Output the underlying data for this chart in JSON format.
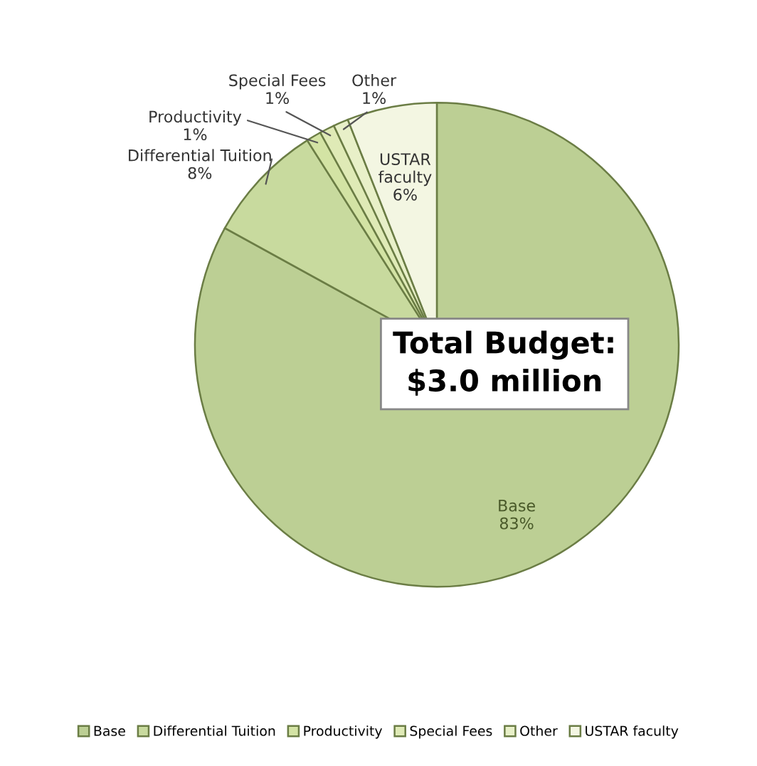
{
  "chart_data": {
    "type": "pie",
    "categories": [
      "Base",
      "Differential Tuition",
      "Productivity",
      "Special Fees",
      "Other",
      "USTAR faculty"
    ],
    "values": [
      83,
      8,
      1,
      1,
      1,
      6
    ],
    "colors": [
      "#bccf94",
      "#c8da9e",
      "#d3e3a4",
      "#dfeab6",
      "#e8f0c8",
      "#f3f6e2"
    ],
    "value_labels": [
      "83%",
      "8%",
      "1%",
      "1%",
      "1%",
      "6%"
    ],
    "legend": "bottom",
    "annotations": [
      "Total Budget:\n$3.0 million"
    ]
  }
}
